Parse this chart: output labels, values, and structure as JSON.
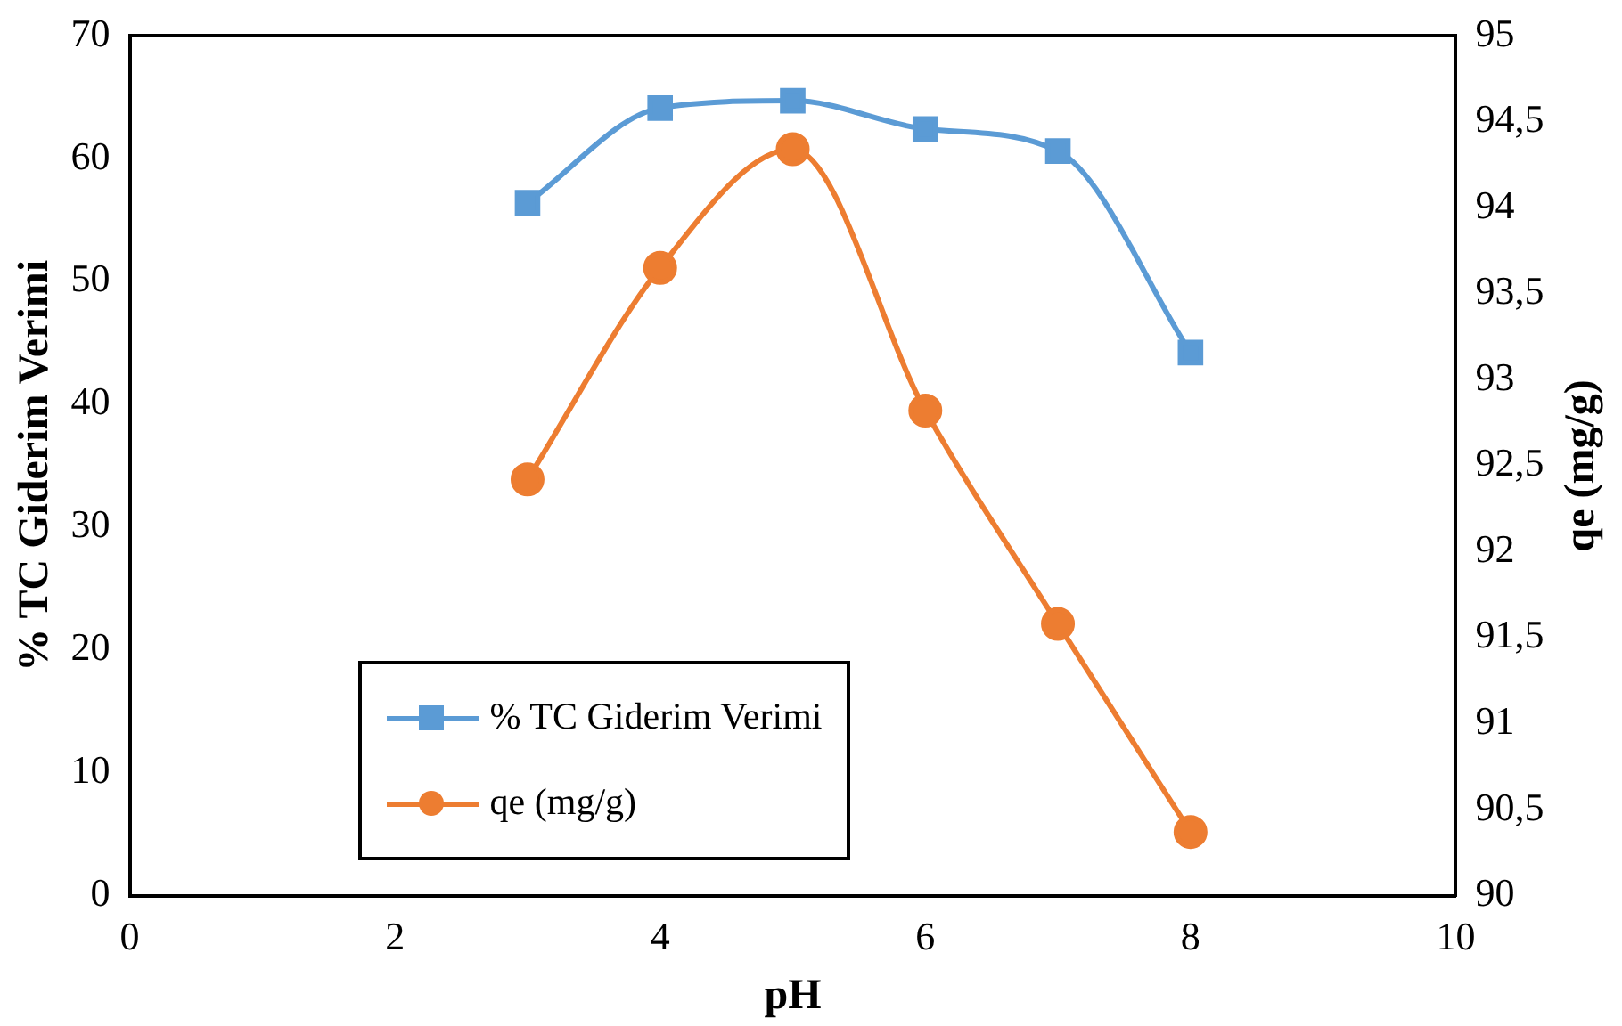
{
  "chart_data": {
    "type": "line",
    "xlabel": "pH",
    "ylabel": "% TC Giderim Verimi",
    "y2label": "qe (mg/g)",
    "x": [
      3,
      4,
      5,
      6,
      7,
      8
    ],
    "series": [
      {
        "name": "% TC Giderim Verimi",
        "color": "#5b9bd5",
        "values": [
          56.4,
          64.1,
          64.7,
          62.4,
          60.6,
          44.2
        ],
        "marker": "square"
      },
      {
        "name": "qe (mg/g)",
        "color": "#ed7d31",
        "values": [
          92.42,
          93.65,
          94.34,
          92.82,
          91.58,
          90.37
        ],
        "marker": "circle",
        "axis": "y2"
      }
    ],
    "xlim": [
      0,
      10
    ],
    "xticks": [
      0,
      2,
      4,
      6,
      8,
      10
    ],
    "ylim": [
      0,
      70
    ],
    "yticks": [
      0,
      10,
      20,
      30,
      40,
      50,
      60,
      70
    ],
    "y2lim": [
      90,
      95
    ],
    "y2ticks": [
      90,
      {
        "value": 90.5,
        "label": "90,5"
      },
      91,
      {
        "value": 91.5,
        "label": "91,5"
      },
      92,
      {
        "value": 92.5,
        "label": "92,5"
      },
      93,
      {
        "value": 93.5,
        "label": "93,5"
      },
      94,
      {
        "value": 94.5,
        "label": "94,5"
      },
      95
    ],
    "grid": false,
    "legend": "bottom left"
  }
}
